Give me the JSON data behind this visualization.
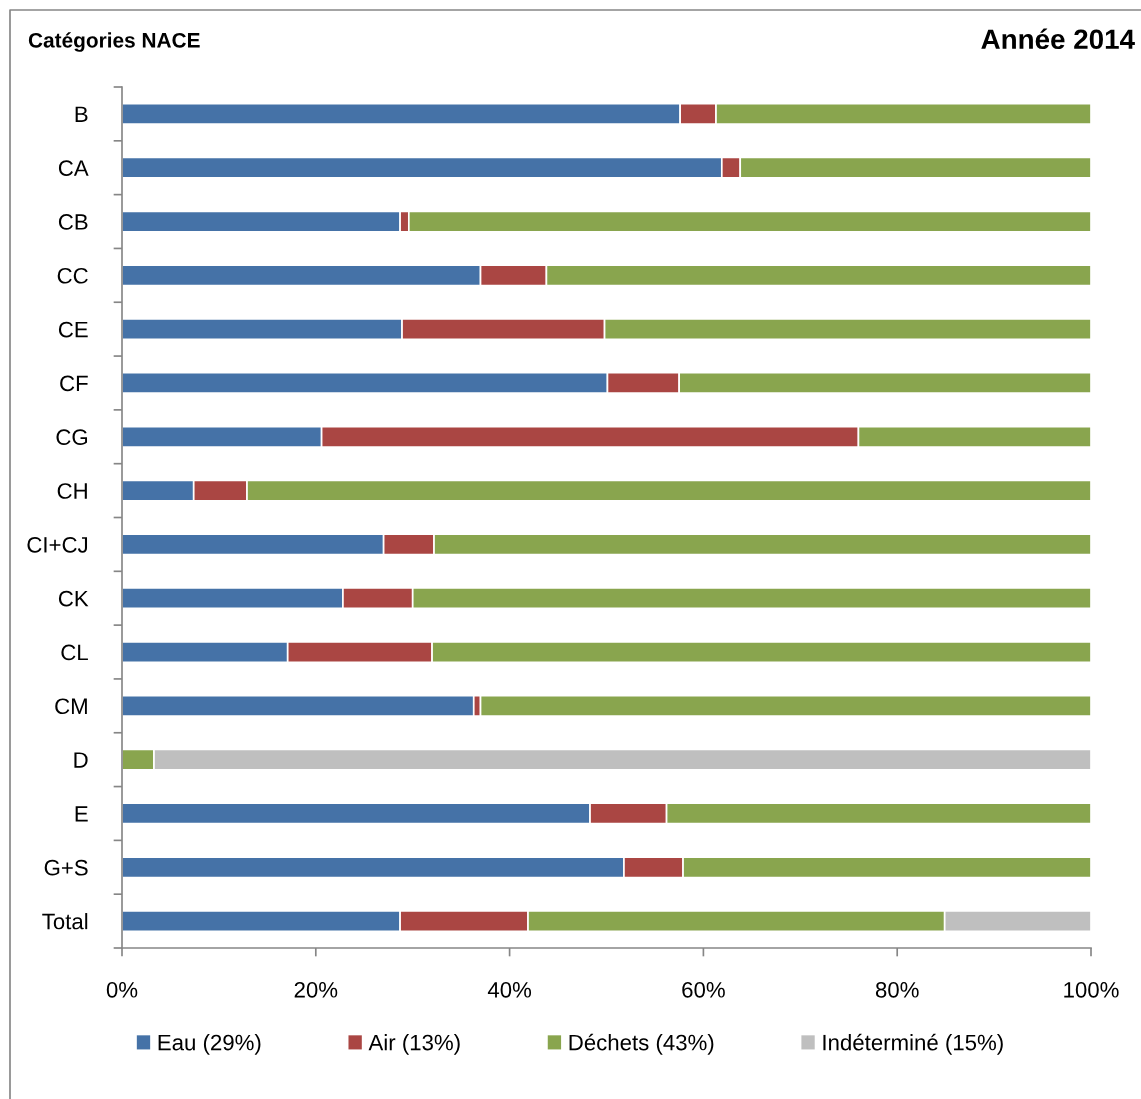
{
  "chart_data": {
    "type": "bar",
    "orientation": "horizontal",
    "stacked": true,
    "title": "Année 2014",
    "ylabel": "Catégories NACE",
    "categories": [
      "B",
      "CA",
      "CB",
      "CC",
      "CE",
      "CF",
      "CG",
      "CH",
      "CI+CJ",
      "CK",
      "CL",
      "CM",
      "D",
      "E",
      "G+S",
      "Total"
    ],
    "series": [
      {
        "name": "Eau (29%)",
        "color": "#4572a7",
        "values": [
          57.6,
          61.9,
          28.7,
          37.0,
          28.9,
          50.1,
          20.6,
          7.4,
          27.0,
          22.8,
          17.1,
          36.3,
          0,
          48.3,
          51.8,
          28.7
        ]
      },
      {
        "name": "Air (13%)",
        "color": "#aa4643",
        "values": [
          3.7,
          1.9,
          0.9,
          6.8,
          20.9,
          7.4,
          55.4,
          5.5,
          5.2,
          7.2,
          14.9,
          0.7,
          0,
          7.9,
          6.1,
          13.2
        ]
      },
      {
        "name": "Déchets (43%)",
        "color": "#89a54e",
        "values": [
          38.7,
          36.2,
          70.4,
          56.2,
          50.2,
          42.5,
          24.0,
          87.1,
          67.8,
          70.0,
          68.0,
          63.0,
          3.3,
          43.8,
          42.1,
          43.0
        ]
      },
      {
        "name": "Indéterminé (15%)",
        "color": "#bfbfbf",
        "values": [
          0,
          0,
          0,
          0,
          0,
          0,
          0,
          0,
          0,
          0,
          0,
          0,
          96.7,
          0,
          0,
          15.1
        ]
      }
    ],
    "xlim": [
      0,
      100
    ],
    "xticks": [
      {
        "value": 0,
        "label": "0%"
      },
      {
        "value": 20,
        "label": "20%"
      },
      {
        "value": 40,
        "label": "40%"
      },
      {
        "value": 60,
        "label": "60%"
      },
      {
        "value": 80,
        "label": "80%"
      },
      {
        "value": 100,
        "label": "100%"
      }
    ],
    "grid": false,
    "legend": "bottom"
  }
}
